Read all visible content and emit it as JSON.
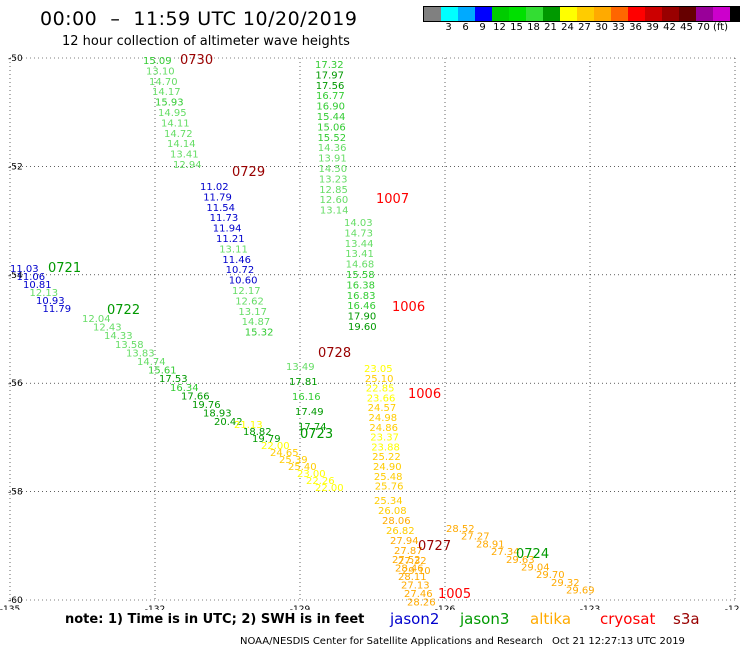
{
  "header": {
    "title": "00:00  –  11:59 UTC 10/20/2019",
    "subtitle": "12 hour collection of altimeter wave heights"
  },
  "colorbar": {
    "colors": [
      "#808080",
      "#00ffff",
      "#00aaff",
      "#0000ff",
      "#00cc00",
      "#00e000",
      "#33dd33",
      "#009900",
      "#ffff00",
      "#ffcc00",
      "#ffaa00",
      "#ff6600",
      "#ff0000",
      "#cc0000",
      "#990000",
      "#660000",
      "#990099",
      "#cc00cc",
      "#000000"
    ],
    "ticks": [
      "3",
      "6",
      "9",
      "12",
      "15",
      "18",
      "21",
      "24",
      "27",
      "30",
      "33",
      "36",
      "39",
      "42",
      "45",
      "70",
      "(ft)"
    ]
  },
  "axes": {
    "y_labels": [
      "-50",
      "-52",
      "-54",
      "-56",
      "-58",
      "-60"
    ],
    "x_labels": [
      "-135",
      "-132",
      "-129",
      "-126",
      "-123",
      "-120"
    ]
  },
  "tracks": [
    {
      "time": "0730",
      "color": "#990000",
      "points": [
        {
          "v": "15.09",
          "c": "#33cc33"
        },
        {
          "v": "13.10",
          "c": "#66dd66"
        },
        {
          "v": "14.70",
          "c": "#66dd66"
        },
        {
          "v": "14.17",
          "c": "#66dd66"
        },
        {
          "v": "15.93",
          "c": "#33cc33"
        },
        {
          "v": "14.95",
          "c": "#66dd66"
        },
        {
          "v": "14.11",
          "c": "#66dd66"
        },
        {
          "v": "14.72",
          "c": "#66dd66"
        },
        {
          "v": "14.14",
          "c": "#66dd66"
        },
        {
          "v": "13.41",
          "c": "#66dd66"
        },
        {
          "v": "12.94",
          "c": "#66dd66"
        }
      ]
    },
    {
      "time": "0729",
      "color": "#990000",
      "points": [
        {
          "v": "11.02",
          "c": "#0000cc"
        },
        {
          "v": "11.79",
          "c": "#0000cc"
        },
        {
          "v": "11.54",
          "c": "#0000cc"
        },
        {
          "v": "11.73",
          "c": "#0000cc"
        },
        {
          "v": "11.94",
          "c": "#0000cc"
        },
        {
          "v": "11.21",
          "c": "#0000cc"
        },
        {
          "v": "13.11",
          "c": "#66dd66"
        },
        {
          "v": "11.46",
          "c": "#0000cc"
        },
        {
          "v": "10.72",
          "c": "#0000cc"
        },
        {
          "v": "10.60",
          "c": "#0000cc"
        },
        {
          "v": "12.17",
          "c": "#66dd66"
        },
        {
          "v": "12.62",
          "c": "#66dd66"
        },
        {
          "v": "13.17",
          "c": "#66dd66"
        },
        {
          "v": "14.87",
          "c": "#66dd66"
        },
        {
          "v": "15.32",
          "c": "#33cc33"
        }
      ]
    },
    {
      "time": "1007",
      "color": "#ff0000",
      "points": [
        {
          "v": "17.32",
          "c": "#33cc33"
        },
        {
          "v": "17.97",
          "c": "#009900"
        },
        {
          "v": "17.56",
          "c": "#009900"
        },
        {
          "v": "16.77",
          "c": "#33cc33"
        },
        {
          "v": "16.90",
          "c": "#33cc33"
        },
        {
          "v": "15.44",
          "c": "#33cc33"
        },
        {
          "v": "15.06",
          "c": "#33cc33"
        },
        {
          "v": "15.52",
          "c": "#33cc33"
        },
        {
          "v": "14.36",
          "c": "#66dd66"
        },
        {
          "v": "13.91",
          "c": "#66dd66"
        },
        {
          "v": "14.50",
          "c": "#66dd66"
        },
        {
          "v": "13.23",
          "c": "#66dd66"
        },
        {
          "v": "12.85",
          "c": "#66dd66"
        },
        {
          "v": "12.60",
          "c": "#66dd66"
        },
        {
          "v": "13.14",
          "c": "#66dd66"
        }
      ]
    },
    {
      "time": "1006",
      "color": "#ff0000",
      "points": [
        {
          "v": "14.03",
          "c": "#66dd66"
        },
        {
          "v": "14.73",
          "c": "#66dd66"
        },
        {
          "v": "13.44",
          "c": "#66dd66"
        },
        {
          "v": "13.41",
          "c": "#66dd66"
        },
        {
          "v": "14.68",
          "c": "#66dd66"
        },
        {
          "v": "15.58",
          "c": "#33cc33"
        },
        {
          "v": "16.38",
          "c": "#33cc33"
        },
        {
          "v": "16.83",
          "c": "#33cc33"
        },
        {
          "v": "16.46",
          "c": "#33cc33"
        },
        {
          "v": "17.90",
          "c": "#009900"
        },
        {
          "v": "19.60",
          "c": "#009900"
        }
      ]
    },
    {
      "time": "0721",
      "color": "#009900",
      "points": [
        {
          "v": "11.03",
          "c": "#0000cc"
        },
        {
          "v": "11.06",
          "c": "#0000cc"
        },
        {
          "v": "10.81",
          "c": "#0000cc"
        },
        {
          "v": "12.13",
          "c": "#66dd66"
        },
        {
          "v": "10.93",
          "c": "#0000cc"
        },
        {
          "v": "11.79",
          "c": "#0000cc"
        }
      ]
    },
    {
      "time": "0722",
      "color": "#009900",
      "points": [
        {
          "v": "12.04",
          "c": "#66dd66"
        },
        {
          "v": "12.43",
          "c": "#66dd66"
        },
        {
          "v": "14.33",
          "c": "#66dd66"
        },
        {
          "v": "13.58",
          "c": "#66dd66"
        },
        {
          "v": "13.83",
          "c": "#66dd66"
        },
        {
          "v": "14.74",
          "c": "#66dd66"
        },
        {
          "v": "15.61",
          "c": "#33cc33"
        },
        {
          "v": "17.53",
          "c": "#009900"
        },
        {
          "v": "16.34",
          "c": "#33cc33"
        },
        {
          "v": "17.66",
          "c": "#009900"
        },
        {
          "v": "19.76",
          "c": "#009900"
        },
        {
          "v": "18.93",
          "c": "#009900"
        },
        {
          "v": "20.42",
          "c": "#009900"
        }
      ]
    },
    {
      "time": "0728",
      "color": "#990000",
      "points": [
        {
          "v": "13.49",
          "c": "#66dd66"
        },
        {
          "v": "17.81",
          "c": "#009900"
        },
        {
          "v": "16.16",
          "c": "#33cc33"
        },
        {
          "v": "17.49",
          "c": "#009900"
        },
        {
          "v": "17.74",
          "c": "#009900"
        }
      ]
    },
    {
      "time": "0723",
      "color": "#009900",
      "points": [
        {
          "v": "21.13",
          "c": "#ffff00"
        },
        {
          "v": "18.82",
          "c": "#009900"
        },
        {
          "v": "19.79",
          "c": "#009900"
        },
        {
          "v": "22.00",
          "c": "#ffff00"
        },
        {
          "v": "24.65",
          "c": "#ffcc00"
        },
        {
          "v": "25.39",
          "c": "#ffcc00"
        },
        {
          "v": "25.40",
          "c": "#ffcc00"
        },
        {
          "v": "23.00",
          "c": "#ffff00"
        },
        {
          "v": "22.26",
          "c": "#ffff00"
        },
        {
          "v": "22.00",
          "c": "#ffff00"
        }
      ]
    },
    {
      "time": "1006",
      "color": "#ff0000",
      "points": [
        {
          "v": "23.05",
          "c": "#ffff00"
        },
        {
          "v": "25.10",
          "c": "#ffcc00"
        },
        {
          "v": "22.85",
          "c": "#ffff00"
        },
        {
          "v": "23.66",
          "c": "#ffff00"
        },
        {
          "v": "24.57",
          "c": "#ffcc00"
        },
        {
          "v": "24.98",
          "c": "#ffcc00"
        },
        {
          "v": "24.86",
          "c": "#ffcc00"
        },
        {
          "v": "23.37",
          "c": "#ffff00"
        },
        {
          "v": "23.88",
          "c": "#ffff00"
        },
        {
          "v": "25.22",
          "c": "#ffcc00"
        },
        {
          "v": "24.90",
          "c": "#ffcc00"
        },
        {
          "v": "25.48",
          "c": "#ffcc00"
        },
        {
          "v": "25.76",
          "c": "#ffcc00"
        }
      ]
    },
    {
      "time": "0727",
      "color": "#990000",
      "points": [
        {
          "v": "25.34",
          "c": "#ffcc00"
        },
        {
          "v": "26.08",
          "c": "#ffcc00"
        },
        {
          "v": "28.06",
          "c": "#ffaa00"
        },
        {
          "v": "26.82",
          "c": "#ffcc00"
        },
        {
          "v": "27.94",
          "c": "#ffaa00"
        },
        {
          "v": "27.87",
          "c": "#ffaa00"
        },
        {
          "v": "27.32",
          "c": "#ffaa00"
        },
        {
          "v": "29.10",
          "c": "#ffaa00"
        }
      ]
    },
    {
      "time": "0724",
      "color": "#009900",
      "points": [
        {
          "v": "28.52",
          "c": "#ffaa00"
        },
        {
          "v": "27.27",
          "c": "#ffaa00"
        },
        {
          "v": "28.91",
          "c": "#ffaa00"
        },
        {
          "v": "27.34",
          "c": "#ffaa00"
        },
        {
          "v": "29.63",
          "c": "#ffaa00"
        },
        {
          "v": "29.04",
          "c": "#ffaa00"
        },
        {
          "v": "29.70",
          "c": "#ffaa00"
        },
        {
          "v": "29.32",
          "c": "#ffaa00"
        },
        {
          "v": "29.69",
          "c": "#ffaa00"
        }
      ]
    },
    {
      "time": "1005",
      "color": "#ff0000",
      "points": [
        {
          "v": "27.52",
          "c": "#ffaa00"
        },
        {
          "v": "28.46",
          "c": "#ffaa00"
        },
        {
          "v": "28.11",
          "c": "#ffaa00"
        },
        {
          "v": "27.13",
          "c": "#ffaa00"
        },
        {
          "v": "27.46",
          "c": "#ffaa00"
        },
        {
          "v": "28.26",
          "c": "#ffaa00"
        }
      ]
    }
  ],
  "legend": {
    "note": "note: 1) Time is in UTC; 2) SWH is in feet",
    "satellites": [
      {
        "name": "jason2",
        "color": "#0000cc"
      },
      {
        "name": "jason3",
        "color": "#009900"
      },
      {
        "name": "altika",
        "color": "#ffaa00"
      },
      {
        "name": "cryosat",
        "color": "#ff0000"
      },
      {
        "name": "s3a",
        "color": "#990000"
      }
    ]
  },
  "footer": {
    "credit": "NOAA/NESDIS Center for Satellite Applications and Research",
    "date": "Oct 21 12:27:13 UTC 2019"
  }
}
